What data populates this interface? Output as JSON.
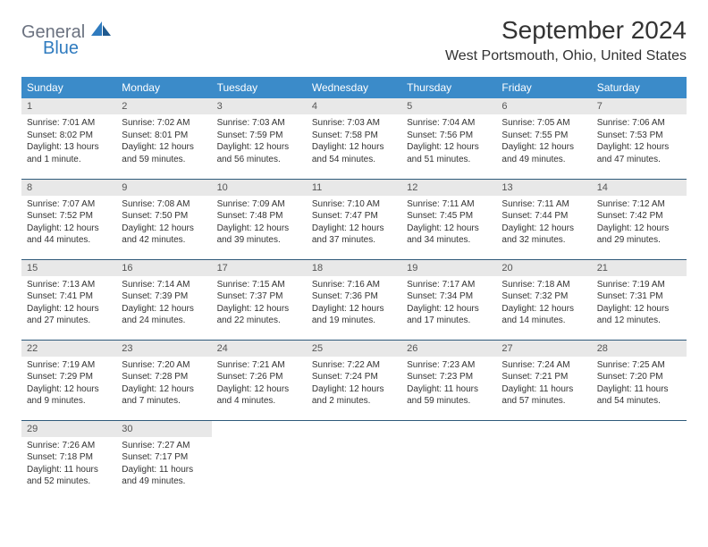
{
  "logo": {
    "general": "General",
    "blue": "Blue"
  },
  "title": "September 2024",
  "location": "West Portsmouth, Ohio, United States",
  "colors": {
    "header_bg": "#3b8bc9",
    "header_fg": "#ffffff",
    "daynum_bg": "#e8e8e8",
    "daynum_fg": "#555555",
    "border": "#2f5a7a",
    "logo_gray": "#6b7280",
    "logo_blue": "#2f7bbf"
  },
  "dayNames": [
    "Sunday",
    "Monday",
    "Tuesday",
    "Wednesday",
    "Thursday",
    "Friday",
    "Saturday"
  ],
  "weeks": [
    [
      {
        "n": "1",
        "sr": "7:01 AM",
        "ss": "8:02 PM",
        "dl": "13 hours and 1 minute."
      },
      {
        "n": "2",
        "sr": "7:02 AM",
        "ss": "8:01 PM",
        "dl": "12 hours and 59 minutes."
      },
      {
        "n": "3",
        "sr": "7:03 AM",
        "ss": "7:59 PM",
        "dl": "12 hours and 56 minutes."
      },
      {
        "n": "4",
        "sr": "7:03 AM",
        "ss": "7:58 PM",
        "dl": "12 hours and 54 minutes."
      },
      {
        "n": "5",
        "sr": "7:04 AM",
        "ss": "7:56 PM",
        "dl": "12 hours and 51 minutes."
      },
      {
        "n": "6",
        "sr": "7:05 AM",
        "ss": "7:55 PM",
        "dl": "12 hours and 49 minutes."
      },
      {
        "n": "7",
        "sr": "7:06 AM",
        "ss": "7:53 PM",
        "dl": "12 hours and 47 minutes."
      }
    ],
    [
      {
        "n": "8",
        "sr": "7:07 AM",
        "ss": "7:52 PM",
        "dl": "12 hours and 44 minutes."
      },
      {
        "n": "9",
        "sr": "7:08 AM",
        "ss": "7:50 PM",
        "dl": "12 hours and 42 minutes."
      },
      {
        "n": "10",
        "sr": "7:09 AM",
        "ss": "7:48 PM",
        "dl": "12 hours and 39 minutes."
      },
      {
        "n": "11",
        "sr": "7:10 AM",
        "ss": "7:47 PM",
        "dl": "12 hours and 37 minutes."
      },
      {
        "n": "12",
        "sr": "7:11 AM",
        "ss": "7:45 PM",
        "dl": "12 hours and 34 minutes."
      },
      {
        "n": "13",
        "sr": "7:11 AM",
        "ss": "7:44 PM",
        "dl": "12 hours and 32 minutes."
      },
      {
        "n": "14",
        "sr": "7:12 AM",
        "ss": "7:42 PM",
        "dl": "12 hours and 29 minutes."
      }
    ],
    [
      {
        "n": "15",
        "sr": "7:13 AM",
        "ss": "7:41 PM",
        "dl": "12 hours and 27 minutes."
      },
      {
        "n": "16",
        "sr": "7:14 AM",
        "ss": "7:39 PM",
        "dl": "12 hours and 24 minutes."
      },
      {
        "n": "17",
        "sr": "7:15 AM",
        "ss": "7:37 PM",
        "dl": "12 hours and 22 minutes."
      },
      {
        "n": "18",
        "sr": "7:16 AM",
        "ss": "7:36 PM",
        "dl": "12 hours and 19 minutes."
      },
      {
        "n": "19",
        "sr": "7:17 AM",
        "ss": "7:34 PM",
        "dl": "12 hours and 17 minutes."
      },
      {
        "n": "20",
        "sr": "7:18 AM",
        "ss": "7:32 PM",
        "dl": "12 hours and 14 minutes."
      },
      {
        "n": "21",
        "sr": "7:19 AM",
        "ss": "7:31 PM",
        "dl": "12 hours and 12 minutes."
      }
    ],
    [
      {
        "n": "22",
        "sr": "7:19 AM",
        "ss": "7:29 PM",
        "dl": "12 hours and 9 minutes."
      },
      {
        "n": "23",
        "sr": "7:20 AM",
        "ss": "7:28 PM",
        "dl": "12 hours and 7 minutes."
      },
      {
        "n": "24",
        "sr": "7:21 AM",
        "ss": "7:26 PM",
        "dl": "12 hours and 4 minutes."
      },
      {
        "n": "25",
        "sr": "7:22 AM",
        "ss": "7:24 PM",
        "dl": "12 hours and 2 minutes."
      },
      {
        "n": "26",
        "sr": "7:23 AM",
        "ss": "7:23 PM",
        "dl": "11 hours and 59 minutes."
      },
      {
        "n": "27",
        "sr": "7:24 AM",
        "ss": "7:21 PM",
        "dl": "11 hours and 57 minutes."
      },
      {
        "n": "28",
        "sr": "7:25 AM",
        "ss": "7:20 PM",
        "dl": "11 hours and 54 minutes."
      }
    ],
    [
      {
        "n": "29",
        "sr": "7:26 AM",
        "ss": "7:18 PM",
        "dl": "11 hours and 52 minutes."
      },
      {
        "n": "30",
        "sr": "7:27 AM",
        "ss": "7:17 PM",
        "dl": "11 hours and 49 minutes."
      },
      null,
      null,
      null,
      null,
      null
    ]
  ],
  "labels": {
    "sunrise": "Sunrise: ",
    "sunset": "Sunset: ",
    "daylight": "Daylight: "
  }
}
